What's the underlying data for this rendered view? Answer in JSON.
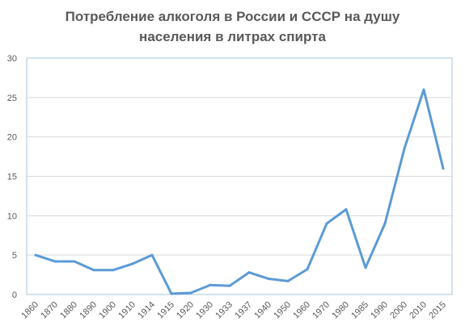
{
  "chart_data": {
    "type": "line",
    "title_line1": "Потребление алкоголя в России и СССР на душу",
    "title_line2": "населения в литрах спирта",
    "categories": [
      "1860",
      "1870",
      "1880",
      "1890",
      "1900",
      "1910",
      "1914",
      "1915",
      "1920",
      "1930",
      "1933",
      "1937",
      "1940",
      "1950",
      "1960",
      "1970",
      "1980",
      "1985",
      "1990",
      "2000",
      "2010",
      "2015"
    ],
    "series": [
      {
        "values": [
          5.0,
          4.2,
          4.2,
          3.1,
          3.1,
          3.9,
          5.0,
          0.1,
          0.2,
          1.2,
          1.1,
          2.8,
          2.0,
          1.7,
          3.2,
          9.0,
          10.8,
          3.4,
          9.0,
          18.5,
          26.0,
          16.0
        ]
      }
    ],
    "ylim": [
      0,
      30
    ],
    "yticks": [
      "0",
      "5",
      "10",
      "15",
      "20",
      "25",
      "30"
    ],
    "grid": true,
    "line_color": "#5b9bd5"
  }
}
